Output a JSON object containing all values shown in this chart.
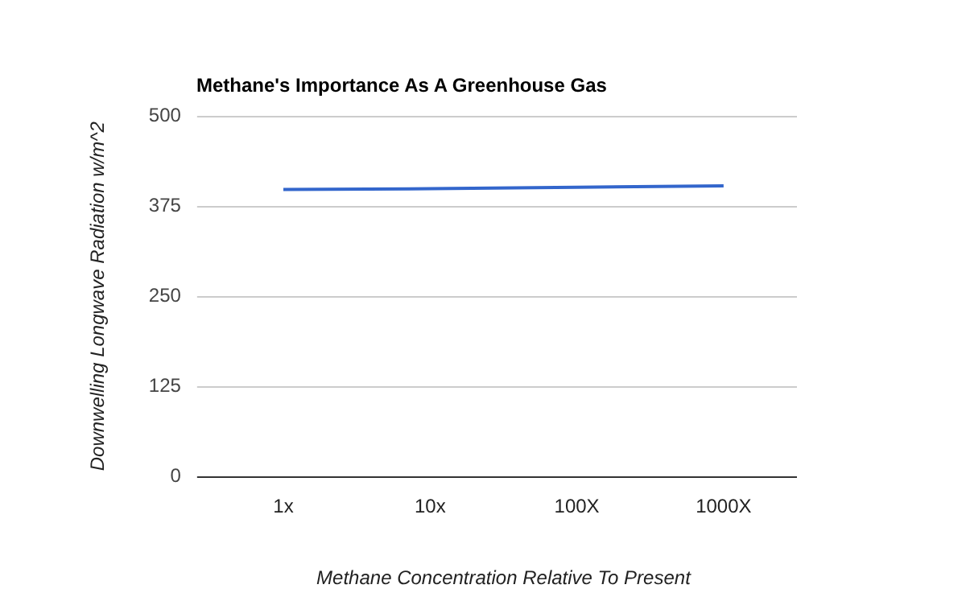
{
  "chart_data": {
    "type": "line",
    "title": "Methane's Importance As A Greenhouse Gas",
    "xlabel": "Methane Concentration Relative To Present",
    "ylabel": "Downwelling Longwave Radiation w/m^2",
    "categories": [
      "1x",
      "10x",
      "100X",
      "1000X"
    ],
    "series": [
      {
        "color": "#3366cc",
        "values": [
          398,
          399,
          401,
          403
        ]
      }
    ],
    "ylim": [
      0,
      500
    ],
    "yticks": [
      0,
      125,
      250,
      375,
      500
    ],
    "grid": "y",
    "legend": false,
    "marker": "none"
  }
}
